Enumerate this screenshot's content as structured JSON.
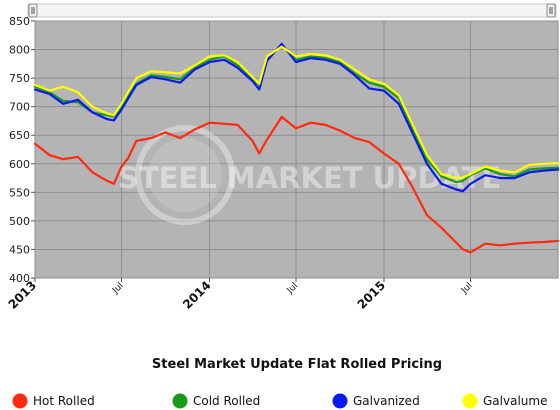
{
  "chart_data": {
    "type": "line",
    "title": "Steel Market Update Flat Rolled Pricing",
    "xlabel": "",
    "ylabel": "",
    "ylim": [
      400,
      850
    ],
    "yticks": [
      400,
      450,
      500,
      550,
      600,
      650,
      700,
      750,
      800,
      850
    ],
    "xlim": [
      "2013-01-01",
      "2015-12-31"
    ],
    "xticks": [
      {
        "date": "2013-01-01",
        "label": "2013",
        "major": true
      },
      {
        "date": "2013-07-01",
        "label": "Jul",
        "major": false
      },
      {
        "date": "2014-01-01",
        "label": "2014",
        "major": true
      },
      {
        "date": "2014-07-01",
        "label": "Jul",
        "major": false
      },
      {
        "date": "2015-01-01",
        "label": "2015",
        "major": true
      },
      {
        "date": "2015-07-01",
        "label": "Jul",
        "major": false
      }
    ],
    "grid": true,
    "legend_position": "bottom",
    "watermark": "STEEL MARKET UPDATE",
    "series": [
      {
        "name": "Hot Rolled",
        "color": "#ff2a10",
        "x": [
          "2013-01-01",
          "2013-02-01",
          "2013-03-01",
          "2013-04-01",
          "2013-05-01",
          "2013-06-01",
          "2013-06-15",
          "2013-07-01",
          "2013-07-15",
          "2013-08-01",
          "2013-09-01",
          "2013-10-01",
          "2013-11-01",
          "2013-12-01",
          "2014-01-01",
          "2014-02-01",
          "2014-03-01",
          "2014-04-01",
          "2014-04-15",
          "2014-05-01",
          "2014-06-01",
          "2014-07-01",
          "2014-08-01",
          "2014-09-01",
          "2014-10-01",
          "2014-11-01",
          "2014-12-01",
          "2015-01-01",
          "2015-02-01",
          "2015-03-01",
          "2015-04-01",
          "2015-05-01",
          "2015-06-01",
          "2015-06-15",
          "2015-07-01",
          "2015-08-01",
          "2015-09-01",
          "2015-10-01",
          "2015-11-01",
          "2015-12-01",
          "2015-12-31"
        ],
        "values": [
          635,
          615,
          608,
          612,
          585,
          570,
          565,
          595,
          610,
          640,
          645,
          655,
          645,
          660,
          672,
          670,
          668,
          640,
          618,
          642,
          682,
          662,
          672,
          668,
          658,
          645,
          638,
          618,
          600,
          560,
          510,
          488,
          462,
          450,
          445,
          460,
          457,
          460,
          462,
          463,
          465
        ]
      },
      {
        "name": "Cold Rolled",
        "color": "#1a9a1a",
        "x": [
          "2013-01-01",
          "2013-02-01",
          "2013-03-01",
          "2013-04-01",
          "2013-05-01",
          "2013-06-01",
          "2013-06-15",
          "2013-07-01",
          "2013-08-01",
          "2013-09-01",
          "2013-10-01",
          "2013-11-01",
          "2013-12-01",
          "2014-01-01",
          "2014-02-01",
          "2014-03-01",
          "2014-04-01",
          "2014-04-15",
          "2014-05-01",
          "2014-06-01",
          "2014-07-01",
          "2014-08-01",
          "2014-09-01",
          "2014-10-01",
          "2014-11-01",
          "2014-12-01",
          "2015-01-01",
          "2015-02-01",
          "2015-03-01",
          "2015-04-01",
          "2015-05-01",
          "2015-06-01",
          "2015-06-15",
          "2015-07-01",
          "2015-08-01",
          "2015-09-01",
          "2015-10-01",
          "2015-11-01",
          "2015-12-01",
          "2015-12-31"
        ],
        "values": [
          735,
          725,
          710,
          708,
          690,
          685,
          683,
          700,
          740,
          755,
          752,
          748,
          768,
          782,
          788,
          772,
          748,
          738,
          782,
          808,
          782,
          788,
          785,
          778,
          758,
          742,
          735,
          715,
          662,
          608,
          578,
          568,
          570,
          580,
          592,
          582,
          578,
          590,
          592,
          593
        ]
      },
      {
        "name": "Galvanized",
        "color": "#0a1aee",
        "x": [
          "2013-01-01",
          "2013-02-01",
          "2013-03-01",
          "2013-04-01",
          "2013-05-01",
          "2013-06-01",
          "2013-06-15",
          "2013-07-01",
          "2013-08-01",
          "2013-09-01",
          "2013-10-01",
          "2013-11-01",
          "2013-12-01",
          "2014-01-01",
          "2014-02-01",
          "2014-03-01",
          "2014-04-01",
          "2014-04-15",
          "2014-05-01",
          "2014-06-01",
          "2014-07-01",
          "2014-08-01",
          "2014-09-01",
          "2014-10-01",
          "2014-11-01",
          "2014-12-01",
          "2015-01-01",
          "2015-02-01",
          "2015-03-01",
          "2015-04-01",
          "2015-05-01",
          "2015-06-01",
          "2015-06-15",
          "2015-07-01",
          "2015-08-01",
          "2015-09-01",
          "2015-10-01",
          "2015-11-01",
          "2015-12-01",
          "2015-12-31"
        ],
        "values": [
          730,
          722,
          705,
          712,
          690,
          678,
          676,
          695,
          738,
          752,
          748,
          742,
          765,
          778,
          782,
          768,
          745,
          730,
          780,
          810,
          778,
          785,
          782,
          775,
          755,
          732,
          728,
          705,
          655,
          600,
          565,
          555,
          552,
          565,
          580,
          575,
          575,
          585,
          588,
          590
        ]
      },
      {
        "name": "Galvalume",
        "color": "#ffff00",
        "x": [
          "2013-01-01",
          "2013-02-01",
          "2013-03-01",
          "2013-04-01",
          "2013-05-01",
          "2013-06-01",
          "2013-06-15",
          "2013-07-01",
          "2013-08-01",
          "2013-09-01",
          "2013-10-01",
          "2013-11-01",
          "2013-12-01",
          "2014-01-01",
          "2014-02-01",
          "2014-03-01",
          "2014-04-01",
          "2014-04-15",
          "2014-05-01",
          "2014-06-01",
          "2014-07-01",
          "2014-08-01",
          "2014-09-01",
          "2014-10-01",
          "2014-11-01",
          "2014-12-01",
          "2015-01-01",
          "2015-02-01",
          "2015-03-01",
          "2015-04-01",
          "2015-05-01",
          "2015-06-01",
          "2015-06-15",
          "2015-07-01",
          "2015-08-01",
          "2015-09-01",
          "2015-10-01",
          "2015-11-01",
          "2015-12-01",
          "2015-12-31"
        ],
        "values": [
          738,
          728,
          735,
          725,
          700,
          688,
          685,
          705,
          750,
          762,
          760,
          758,
          772,
          788,
          790,
          778,
          752,
          740,
          788,
          805,
          788,
          792,
          790,
          782,
          765,
          748,
          740,
          720,
          670,
          615,
          582,
          575,
          576,
          582,
          595,
          588,
          585,
          598,
          600,
          601
        ]
      }
    ]
  }
}
